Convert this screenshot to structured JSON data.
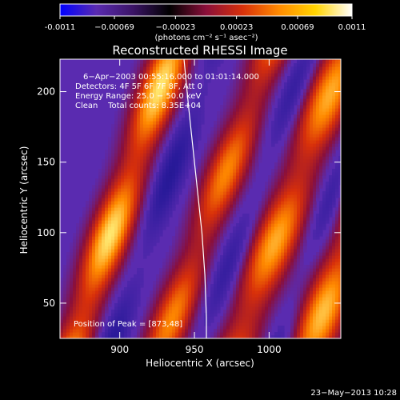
{
  "chart_data": {
    "type": "heatmap",
    "title": "Reconstructed RHESSI Image",
    "xlabel": "Heliocentric X (arcsec)",
    "ylabel": "Heliocentric Y (arcsec)",
    "xlim": [
      860,
      1048
    ],
    "ylim": [
      25,
      223
    ],
    "x_ticks": [
      900,
      950,
      1000
    ],
    "y_ticks": [
      50,
      100,
      150,
      200
    ],
    "grid": false,
    "colorbar": {
      "position": "top",
      "range": [
        -0.0011,
        0.0011
      ],
      "tick_values": [
        -0.0011,
        -0.00069,
        -0.00023,
        0.00023,
        0.00069,
        0.0011
      ],
      "tick_labels": [
        "-0.0011",
        "−0.00069",
        "−0.00023",
        "0.00023",
        "0.00069",
        "0.0011"
      ],
      "units_text": "(photons cm⁻² s⁻¹ asec⁻²)",
      "colors": [
        "#0000ff",
        "#5a2bb0",
        "#3b1466",
        "#000000",
        "#8a0f3a",
        "#d8300a",
        "#ff8a00",
        "#ffd400",
        "#ffffff"
      ]
    },
    "info_lines": [
      "6−Apr−2003 00:55:16.000 to 01:01:14.000",
      "Detectors: 4F 5F 6F 7F 8F, Att 0",
      "Energy Range: 25.0 − 50.0 keV",
      "Clean    Total counts: 8.35E+04"
    ],
    "peak_annotation": "Position of Peak = [873,48]",
    "peak_position": [
      873,
      48
    ],
    "limb_curve": [
      [
        943,
        223
      ],
      [
        946,
        190
      ],
      [
        949,
        160
      ],
      [
        952,
        130
      ],
      [
        955,
        100
      ],
      [
        957,
        70
      ],
      [
        958,
        40
      ],
      [
        958,
        25
      ]
    ],
    "background_color": "#5a2bb0",
    "colormap": [
      [
        0.0,
        "#0b0b7a"
      ],
      [
        0.2,
        "#2a1a9a"
      ],
      [
        0.4,
        "#5a2bb0"
      ],
      [
        0.55,
        "#8a0f3a"
      ],
      [
        0.7,
        "#d8300a"
      ],
      [
        0.85,
        "#ff8a00"
      ],
      [
        1.0,
        "#ffe870"
      ]
    ],
    "bands": [
      {
        "x_at_bottom": 870,
        "slope": 0.32,
        "strength": 1.0,
        "width": 14
      },
      {
        "x_at_bottom": 930,
        "slope": 0.35,
        "strength": 0.75,
        "width": 14
      },
      {
        "x_at_bottom": 980,
        "slope": 0.35,
        "strength": 0.85,
        "width": 16
      },
      {
        "x_at_bottom": 1030,
        "slope": 0.33,
        "strength": 0.9,
        "width": 16
      },
      {
        "x_at_bottom": 1080,
        "slope": 0.3,
        "strength": 0.6,
        "width": 14
      }
    ],
    "dark_bands": [
      {
        "x_at_bottom": 895,
        "slope": 0.33,
        "strength": 0.6,
        "width": 10
      },
      {
        "x_at_bottom": 955,
        "slope": 0.35,
        "strength": 0.5,
        "width": 10
      },
      {
        "x_at_bottom": 1008,
        "slope": 0.34,
        "strength": 0.55,
        "width": 10
      }
    ]
  },
  "footer": {
    "timestamp": "23−May−2013 10:28"
  }
}
